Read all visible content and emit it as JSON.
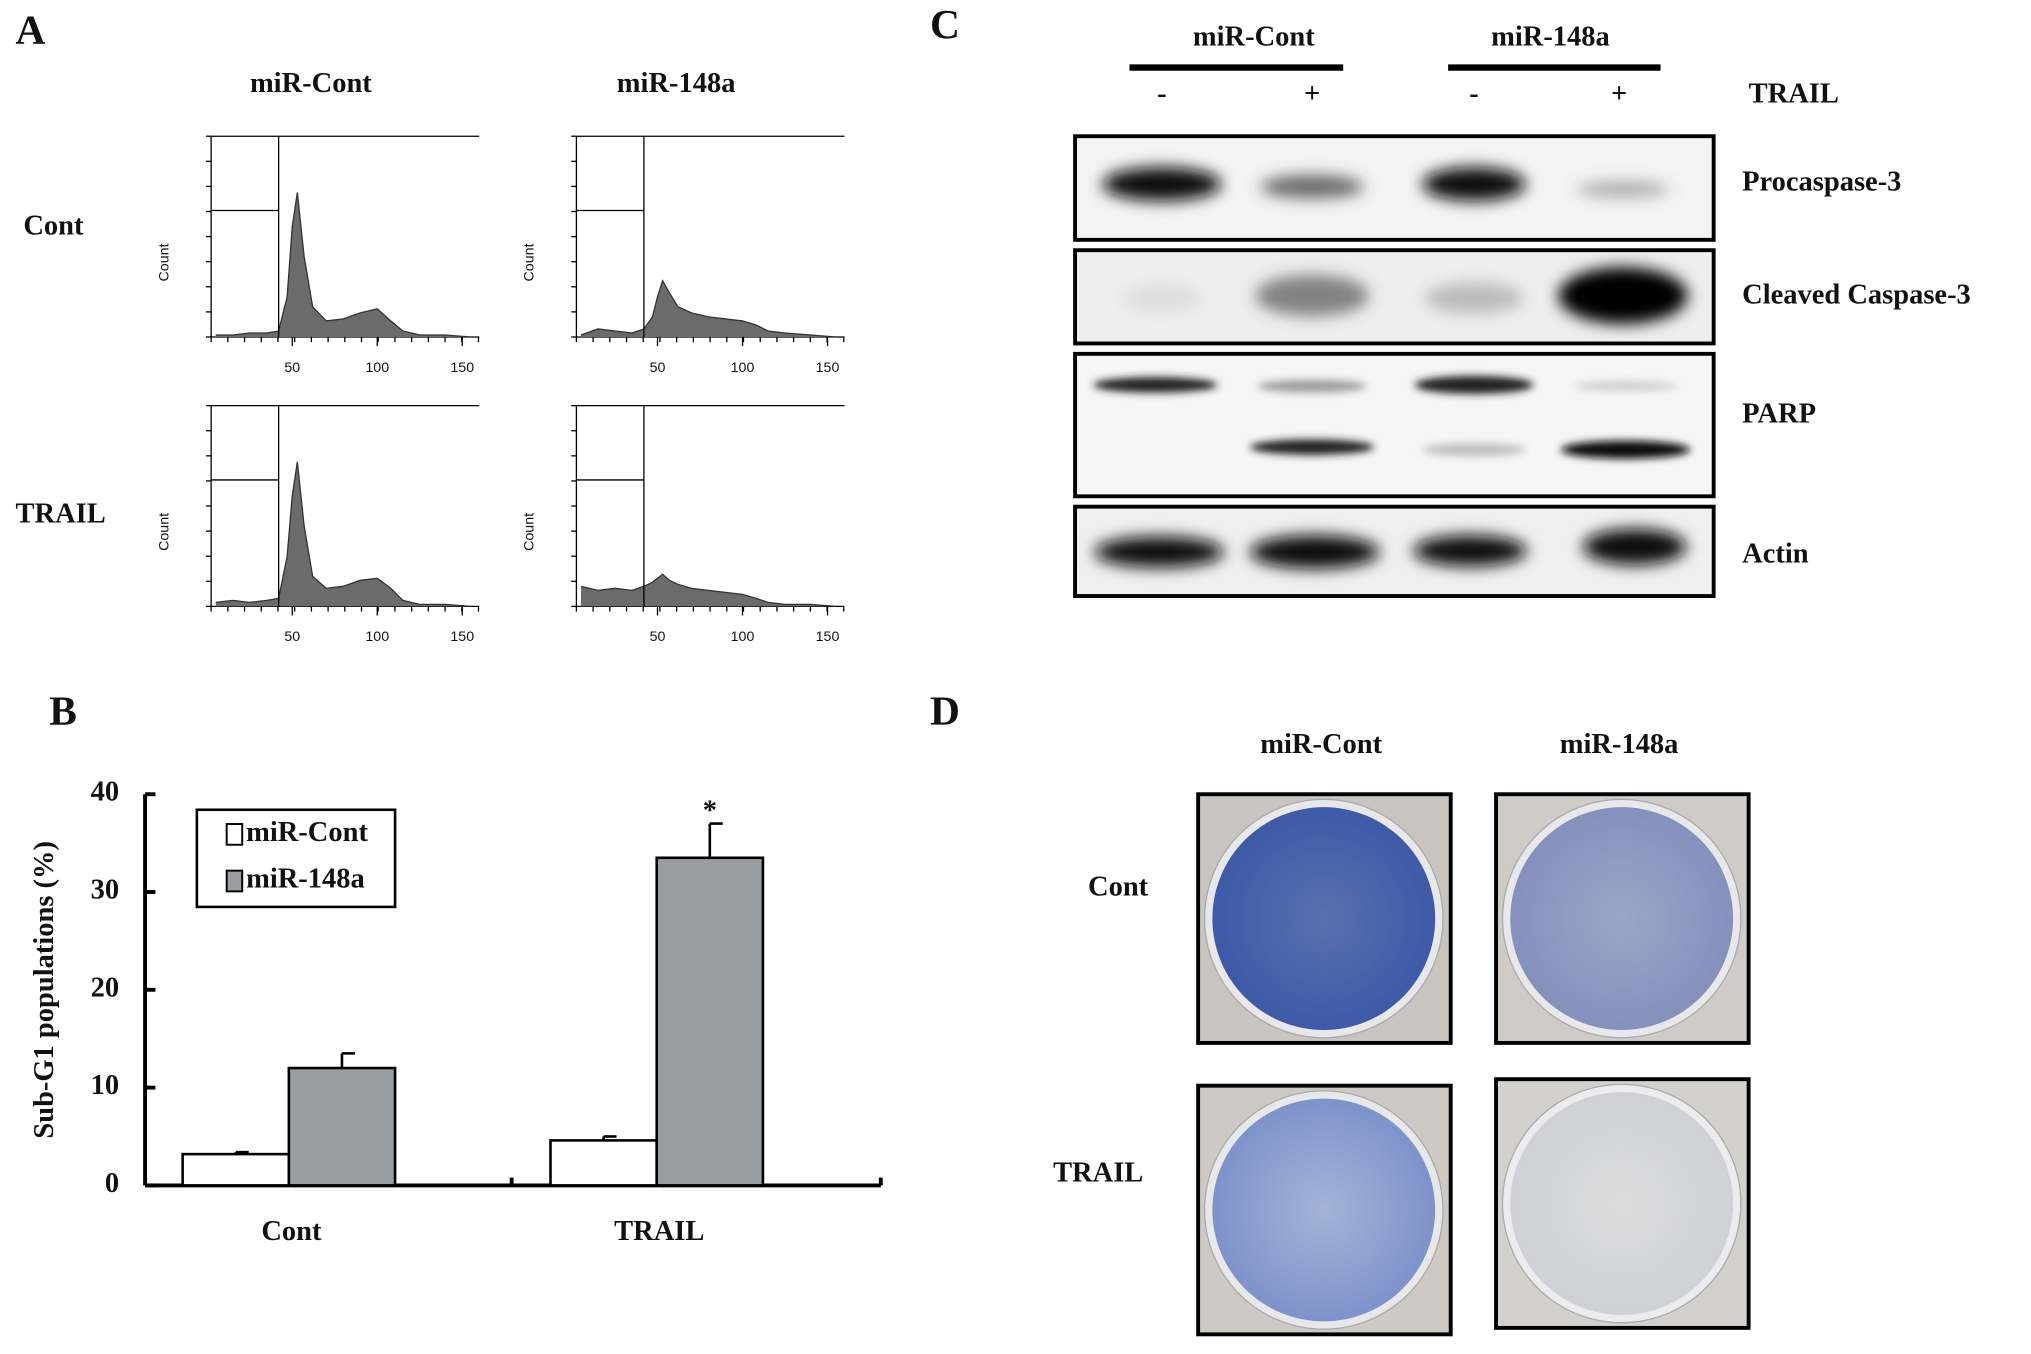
{
  "panel_a": {
    "type": "area",
    "label": "A",
    "columns": [
      "miR-Cont",
      "miR-148a"
    ],
    "rows": [
      "Cont",
      "TRAIL"
    ],
    "y_label": "Count",
    "xlim": [
      0,
      160
    ],
    "xticks": [
      50,
      100,
      150
    ],
    "ylim": [
      0,
      100
    ],
    "color": "#6b6b6b",
    "x": [
      5,
      15,
      25,
      35,
      42,
      47,
      50,
      53,
      57,
      62,
      70,
      80,
      90,
      100,
      108,
      115,
      125,
      140,
      155
    ],
    "histograms": [
      {
        "values": [
          1,
          1,
          2,
          2,
          3,
          20,
          55,
          72,
          40,
          15,
          8,
          9,
          12,
          14,
          8,
          3,
          1,
          1,
          0
        ]
      },
      {
        "values": [
          1,
          4,
          3,
          2,
          4,
          10,
          20,
          28,
          22,
          15,
          12,
          10,
          9,
          8,
          6,
          3,
          2,
          1,
          0
        ]
      },
      {
        "values": [
          2,
          3,
          2,
          3,
          4,
          25,
          55,
          72,
          40,
          15,
          9,
          10,
          13,
          14,
          9,
          3,
          1,
          1,
          0
        ]
      },
      {
        "values": [
          10,
          8,
          9,
          8,
          10,
          12,
          14,
          16,
          13,
          11,
          9,
          8,
          7,
          6,
          4,
          2,
          1,
          1,
          0
        ]
      }
    ]
  },
  "chart_data": {
    "type": "bar",
    "panel_label": "B",
    "y_label": "Sub-G1 populations (%)",
    "categories": [
      "Cont",
      "TRAIL"
    ],
    "series": [
      {
        "name": "miR-Cont",
        "color": "#ffffff",
        "values": [
          3.2,
          4.6
        ],
        "errors": [
          0.2,
          0.4
        ]
      },
      {
        "name": "miR-148a",
        "color": "#9a9ea3",
        "values": [
          12,
          33.5
        ],
        "errors": [
          1.5,
          3.5
        ]
      }
    ],
    "annotation": "*",
    "ylim": [
      0,
      40
    ],
    "yticks": [
      0,
      10,
      20,
      30,
      40
    ],
    "legend": "upper-left"
  },
  "panel_c": {
    "label": "C",
    "groups": [
      "miR-Cont",
      "miR-148a"
    ],
    "signs": [
      "-",
      "+",
      "-",
      "+"
    ],
    "treatment": "TRAIL",
    "bands": [
      "Procaspase-3",
      "Cleaved Caspase-3",
      "PARP",
      "Actin"
    ]
  },
  "panel_d": {
    "label": "D",
    "columns": [
      "miR-Cont",
      "miR-148a"
    ],
    "rows": [
      "Cont",
      "TRAIL"
    ]
  }
}
